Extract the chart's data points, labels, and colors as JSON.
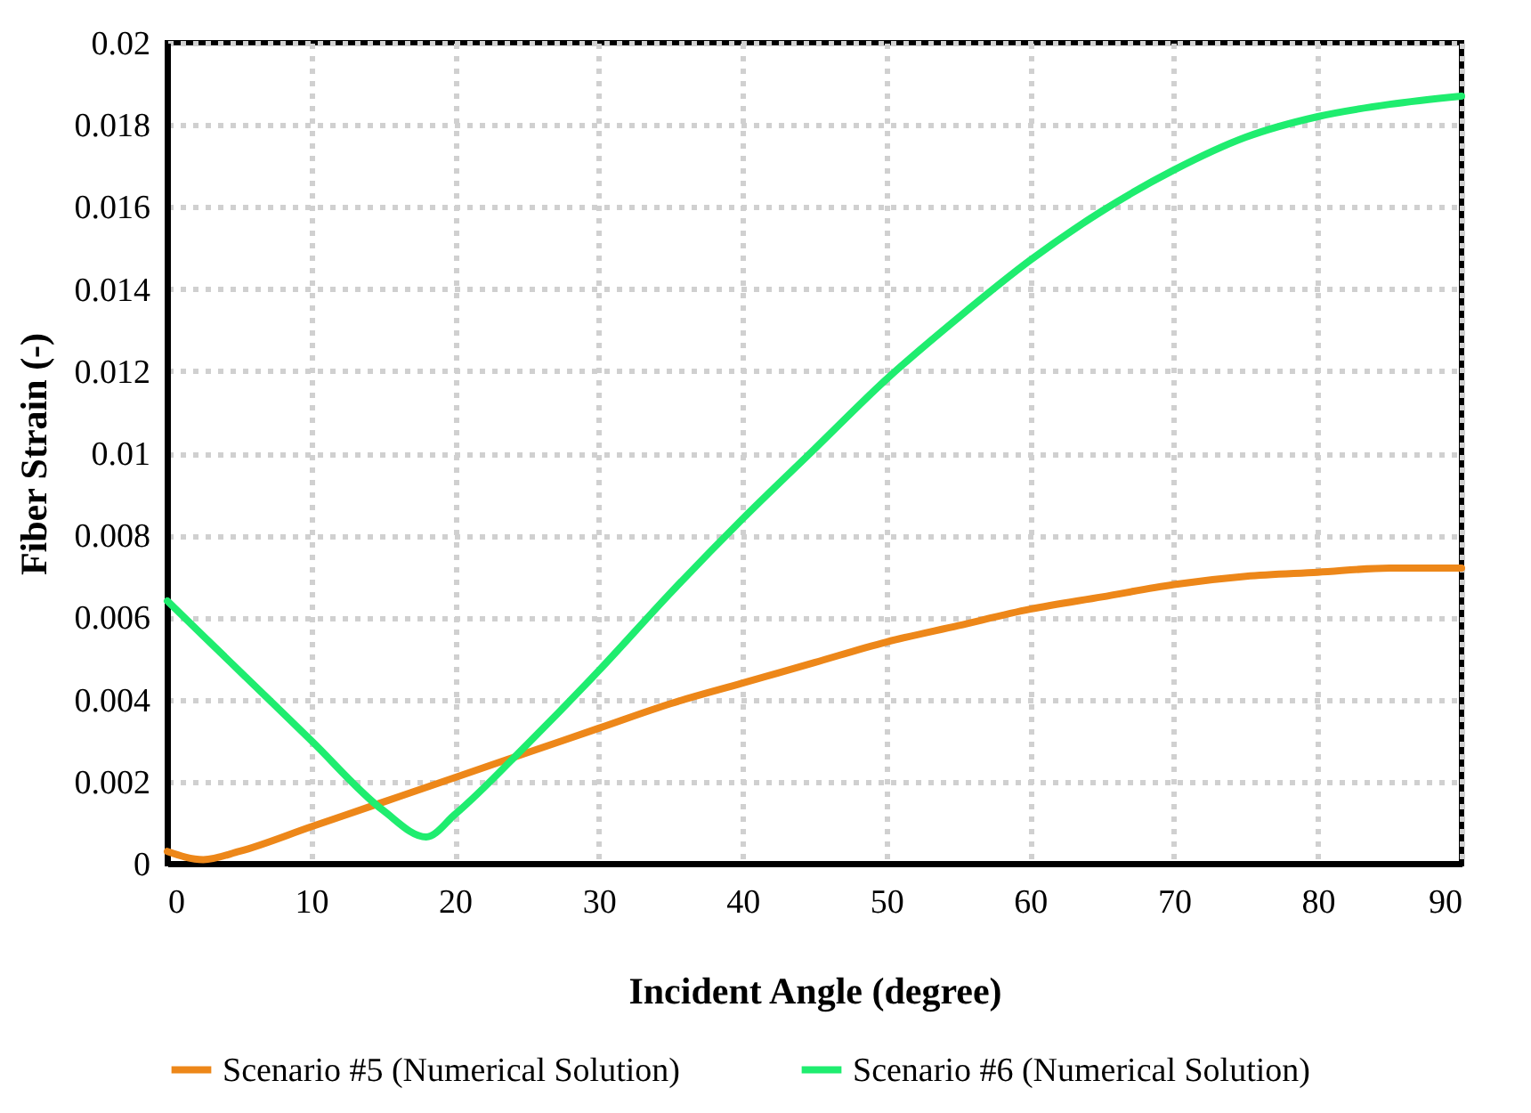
{
  "chart_data": {
    "type": "line",
    "xlabel": "Incident Angle (degree)",
    "ylabel": "Fiber Strain (-)",
    "series": [
      {
        "name": "Scenario #5 (Numerical Solution)",
        "color": "#ed8719",
        "x": [
          0,
          2.5,
          5,
          10,
          15,
          20,
          25,
          30,
          35,
          40,
          45,
          50,
          55,
          60,
          65,
          70,
          75,
          80,
          85,
          90
        ],
        "values": [
          0.0003,
          0.0001,
          0.0003,
          0.0009,
          0.0015,
          0.0021,
          0.0027,
          0.0033,
          0.0039,
          0.0044,
          0.0049,
          0.0054,
          0.0058,
          0.0062,
          0.0065,
          0.0068,
          0.007,
          0.0071,
          0.0072,
          0.0072
        ]
      },
      {
        "name": "Scenario #6 (Numerical Solution)",
        "color": "#1fed6f",
        "x": [
          0,
          5,
          10,
          15,
          18,
          20,
          25,
          30,
          35,
          40,
          45,
          50,
          55,
          60,
          65,
          70,
          75,
          80,
          85,
          90
        ],
        "values": [
          0.0064,
          0.0047,
          0.003,
          0.0013,
          0.00065,
          0.0012,
          0.0029,
          0.0047,
          0.0066,
          0.0084,
          0.0101,
          0.0118,
          0.0133,
          0.0147,
          0.0159,
          0.0169,
          0.0177,
          0.0182,
          0.0185,
          0.0187
        ]
      }
    ],
    "xlim": [
      0,
      90
    ],
    "xticks": [
      0,
      10,
      20,
      30,
      40,
      50,
      60,
      70,
      80,
      90
    ],
    "ylim": [
      0,
      0.02
    ],
    "yticks": [
      0,
      0.002,
      0.004,
      0.006,
      0.008,
      0.01,
      0.012,
      0.014,
      0.016,
      0.018,
      0.02
    ],
    "grid": true,
    "legend": "bottom",
    "marker": "none",
    "line_style": "solid"
  }
}
